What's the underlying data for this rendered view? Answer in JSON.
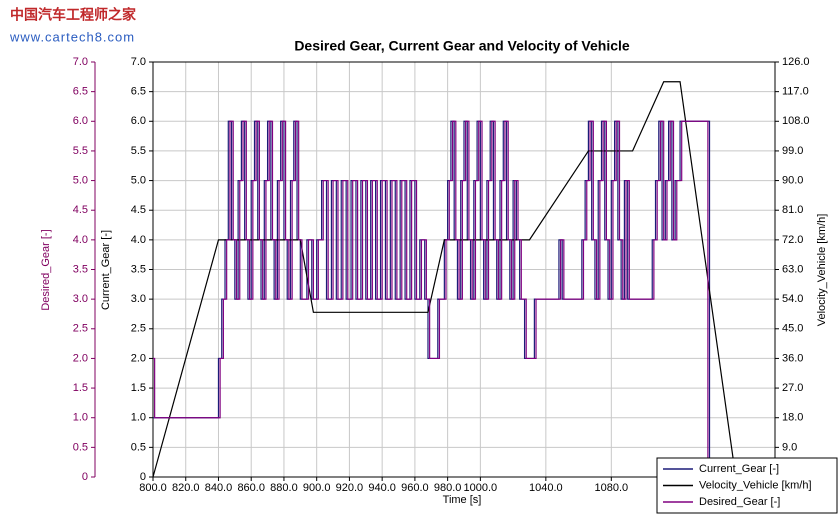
{
  "watermark": {
    "title": "中国汽车工程师之家",
    "url": "www.cartech8.com"
  },
  "chart_data": {
    "type": "line",
    "title": "Desired Gear, Current Gear and Velocity of Vehicle",
    "x_label": "Time [s]",
    "y_label": "Current_Gear [-]",
    "y2_label": "Velocity_Vehicle [km/h]",
    "y3_label": "Desired_Gear [-]",
    "xlim": [
      800,
      1180
    ],
    "xticks": [
      {
        "value": 800,
        "label": "800.0"
      },
      {
        "value": 820,
        "label": "820.0"
      },
      {
        "value": 840,
        "label": "840.0"
      },
      {
        "value": 860,
        "label": "860.0"
      },
      {
        "value": 880,
        "label": "880.0"
      },
      {
        "value": 900,
        "label": "900.0"
      },
      {
        "value": 920,
        "label": "920.0"
      },
      {
        "value": 940,
        "label": "940.0"
      },
      {
        "value": 960,
        "label": "960.0"
      },
      {
        "value": 980,
        "label": "980.0"
      },
      {
        "value": 1000,
        "label": "1000.0"
      },
      {
        "value": 1040,
        "label": "1040.0"
      },
      {
        "value": 1080,
        "label": "1080.0"
      }
    ],
    "ylim": [
      0,
      7
    ],
    "yticks": [
      0,
      0.5,
      {
        "value": 1,
        "label": "1.0"
      },
      1.5,
      {
        "value": 2,
        "label": "2.0"
      },
      2.5,
      {
        "value": 3,
        "label": "3.0"
      },
      3.5,
      {
        "value": 4,
        "label": "4.0"
      },
      4.5,
      {
        "value": 5,
        "label": "5.0"
      },
      5.5,
      {
        "value": 6,
        "label": "6.0"
      },
      6.5,
      {
        "value": 7,
        "label": "7.0"
      }
    ],
    "y3lim": [
      0,
      7
    ],
    "y3ticks": [
      0,
      0.5,
      {
        "value": 1,
        "label": "1.0"
      },
      1.5,
      {
        "value": 2,
        "label": "2.0"
      },
      2.5,
      {
        "value": 3,
        "label": "3.0"
      },
      3.5,
      {
        "value": 4,
        "label": "4.0"
      },
      4.5,
      {
        "value": 5,
        "label": "5.0"
      },
      5.5,
      {
        "value": 6,
        "label": "6.0"
      },
      6.5,
      {
        "value": 7,
        "label": "7.0"
      }
    ],
    "y2lim": [
      0,
      126
    ],
    "y2ticks": [
      {
        "value": 9,
        "label": "9.0"
      },
      {
        "value": 18,
        "label": "18.0"
      },
      {
        "value": 27,
        "label": "27.0"
      },
      {
        "value": 36,
        "label": "36.0"
      },
      {
        "value": 45,
        "label": "45.0"
      },
      {
        "value": 54,
        "label": "54.0"
      },
      {
        "value": 63,
        "label": "63.0"
      },
      {
        "value": 72,
        "label": "72.0"
      },
      {
        "value": 81,
        "label": "81.0"
      },
      {
        "value": 90,
        "label": "90.0"
      },
      {
        "value": 99,
        "label": "99.0"
      },
      {
        "value": 108,
        "label": "108.0"
      },
      {
        "value": 117,
        "label": "117.0"
      },
      {
        "value": 126,
        "label": "126.0"
      }
    ],
    "grid": true,
    "legend": "lower right",
    "y3_color": "#800060",
    "series": [
      {
        "name": "Current_Gear [-]",
        "color": "#1c1c78",
        "axis": "y",
        "step": true,
        "x": [
          800,
          840,
          842,
          844,
          846,
          848,
          850,
          852,
          854,
          856,
          858,
          860,
          862,
          864,
          866,
          868,
          870,
          872,
          874,
          876,
          878,
          880,
          882,
          884,
          886,
          888,
          890,
          894,
          897,
          900,
          903,
          906,
          909,
          912,
          915,
          918,
          921,
          924,
          927,
          930,
          933,
          936,
          939,
          942,
          945,
          948,
          951,
          954,
          957,
          960,
          963,
          966,
          968,
          974,
          978,
          980,
          982,
          984,
          986,
          988,
          990,
          992,
          994,
          996,
          998,
          1000,
          1002,
          1004,
          1006,
          1008,
          1010,
          1012,
          1014,
          1016,
          1018,
          1020,
          1022,
          1024,
          1027,
          1033,
          1048,
          1050,
          1062,
          1064,
          1066,
          1068,
          1070,
          1072,
          1074,
          1076,
          1078,
          1080,
          1082,
          1084,
          1086,
          1088,
          1090,
          1105,
          1107,
          1109,
          1111,
          1113,
          1115,
          1117,
          1119,
          1122,
          1140
        ],
        "values": [
          1,
          2,
          3,
          4,
          6,
          4,
          3,
          5,
          6,
          4,
          3,
          5,
          6,
          4,
          3,
          5,
          6,
          4,
          3,
          5,
          6,
          4,
          3,
          5,
          6,
          4,
          3,
          4,
          3,
          4,
          5,
          3,
          5,
          3,
          5,
          3,
          5,
          3,
          5,
          3,
          5,
          3,
          5,
          3,
          5,
          3,
          5,
          3,
          5,
          3,
          4,
          3,
          2,
          3,
          4,
          5,
          6,
          4,
          3,
          5,
          6,
          4,
          3,
          5,
          6,
          4,
          3,
          5,
          6,
          4,
          3,
          5,
          6,
          4,
          3,
          5,
          4,
          3,
          2,
          3,
          4,
          3,
          4,
          5,
          6,
          4,
          3,
          5,
          6,
          4,
          3,
          5,
          6,
          4,
          3,
          5,
          3,
          4,
          5,
          6,
          4,
          5,
          6,
          4,
          5,
          6,
          0
        ]
      },
      {
        "name": "Velocity_Vehicle [km/h]",
        "color": "#000000",
        "axis": "y2",
        "x": [
          800,
          840,
          845,
          890,
          898,
          968,
          978,
          1030,
          1066,
          1093,
          1112,
          1122,
          1156
        ],
        "values": [
          0,
          72,
          72,
          72,
          50,
          50,
          72,
          72,
          99,
          99,
          120,
          120,
          0
        ]
      },
      {
        "name": "Desired_Gear [-]",
        "color": "#800080",
        "axis": "y3",
        "step": true,
        "x": [
          800,
          801,
          841,
          843,
          845,
          847,
          849,
          851,
          853,
          855,
          857,
          859,
          861,
          863,
          865,
          867,
          869,
          871,
          873,
          875,
          877,
          879,
          881,
          883,
          885,
          887,
          889,
          891,
          895,
          898,
          901,
          904,
          907,
          910,
          913,
          916,
          919,
          922,
          925,
          928,
          931,
          934,
          937,
          940,
          943,
          946,
          949,
          952,
          955,
          958,
          961,
          964,
          967,
          969,
          975,
          979,
          981,
          983,
          985,
          987,
          989,
          991,
          993,
          995,
          997,
          999,
          1001,
          1003,
          1005,
          1007,
          1009,
          1011,
          1013,
          1015,
          1017,
          1019,
          1021,
          1023,
          1025,
          1028,
          1034,
          1049,
          1051,
          1063,
          1065,
          1067,
          1069,
          1071,
          1073,
          1075,
          1077,
          1079,
          1081,
          1083,
          1085,
          1087,
          1089,
          1091,
          1106,
          1108,
          1110,
          1112,
          1114,
          1116,
          1118,
          1120,
          1123,
          1139
        ],
        "values": [
          2,
          1,
          2,
          3,
          4,
          6,
          4,
          3,
          5,
          6,
          4,
          3,
          5,
          6,
          4,
          3,
          5,
          6,
          4,
          3,
          5,
          6,
          4,
          3,
          5,
          6,
          4,
          3,
          4,
          3,
          4,
          5,
          3,
          5,
          3,
          5,
          3,
          5,
          3,
          5,
          3,
          5,
          3,
          5,
          3,
          5,
          3,
          5,
          3,
          5,
          3,
          4,
          3,
          2,
          3,
          4,
          5,
          6,
          4,
          3,
          5,
          6,
          4,
          3,
          5,
          6,
          4,
          3,
          5,
          6,
          4,
          3,
          5,
          6,
          4,
          3,
          5,
          4,
          3,
          2,
          3,
          4,
          3,
          4,
          5,
          6,
          4,
          3,
          5,
          6,
          4,
          3,
          5,
          6,
          4,
          3,
          5,
          3,
          4,
          5,
          6,
          4,
          5,
          6,
          4,
          5,
          6,
          0
        ]
      }
    ]
  }
}
